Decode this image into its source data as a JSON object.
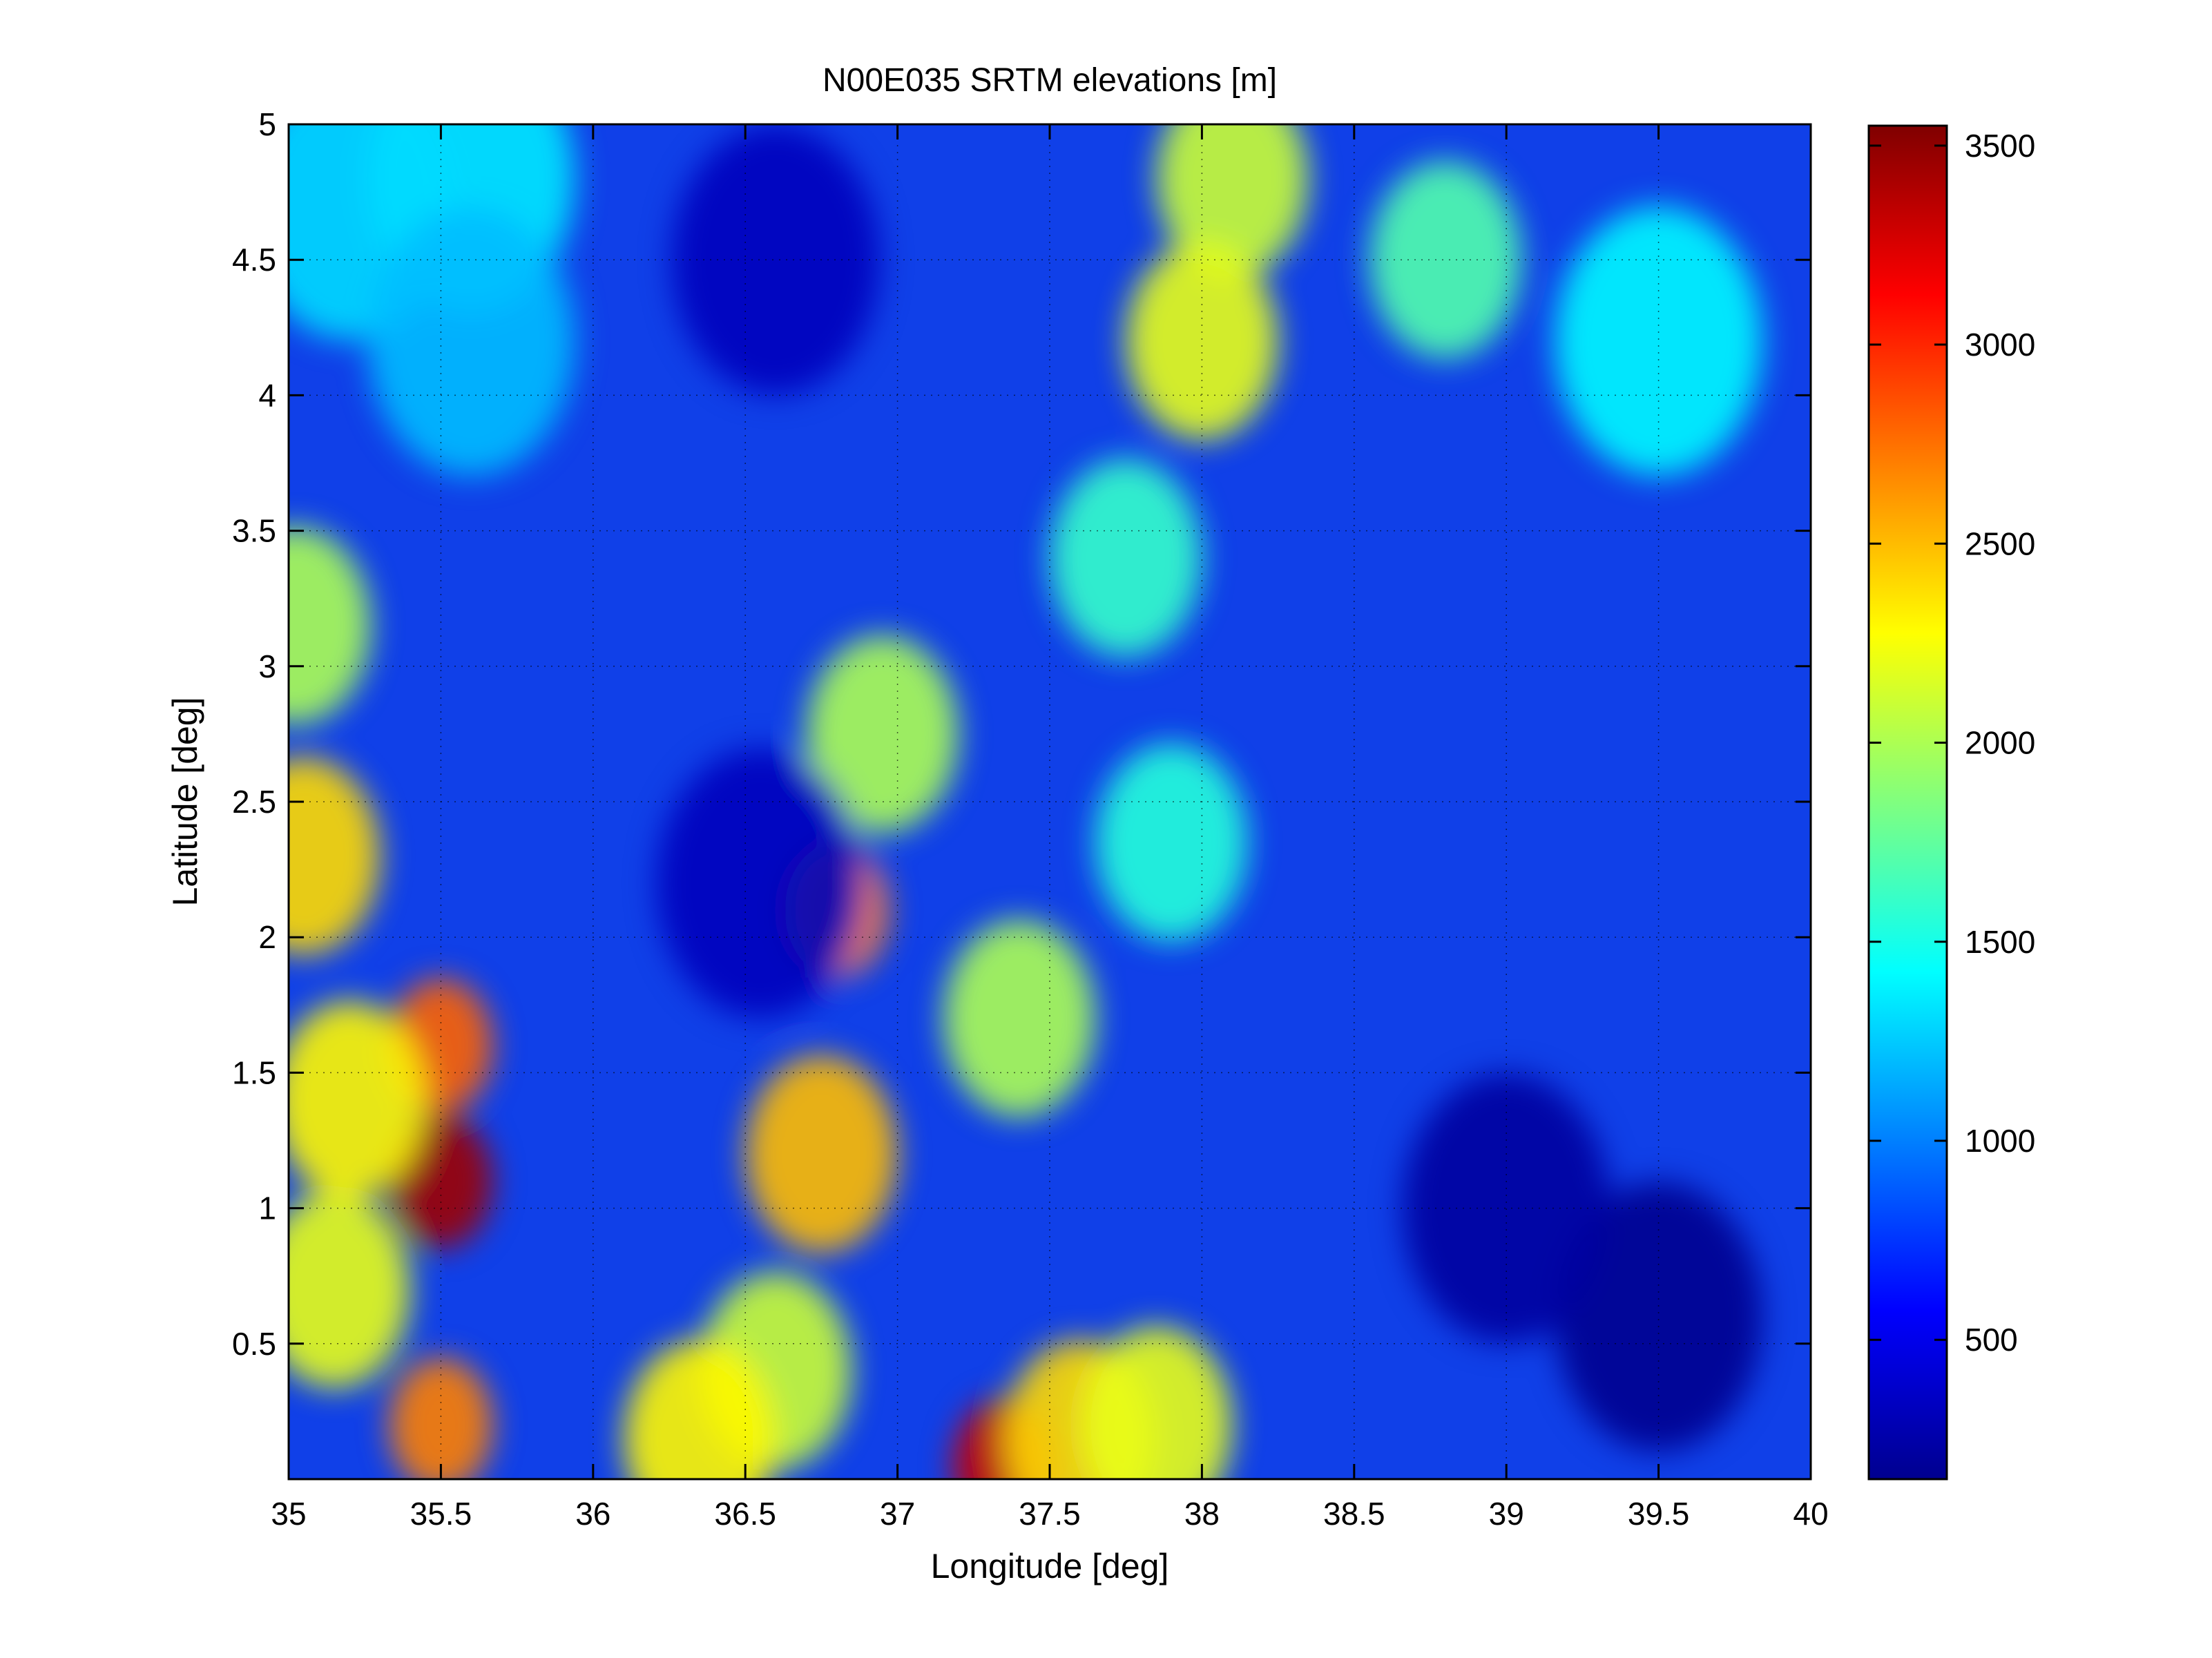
{
  "chart_data": {
    "type": "heatmap",
    "title": "N00E035 SRTM elevations [m]",
    "xlabel": "Longitude [deg]",
    "ylabel": "Latitude [deg]",
    "xlim": [
      35,
      40
    ],
    "ylim": [
      0,
      5
    ],
    "x_ticks": [
      35,
      35.5,
      36,
      36.5,
      37,
      37.5,
      38,
      38.5,
      39,
      39.5,
      40
    ],
    "y_ticks": [
      0.5,
      1,
      1.5,
      2,
      2.5,
      3,
      3.5,
      4,
      4.5,
      5
    ],
    "grid": true,
    "colormap": "jet",
    "colorbar": {
      "range": [
        150,
        3550
      ],
      "ticks": [
        500,
        1000,
        1500,
        2000,
        2500,
        3000,
        3500
      ]
    },
    "features": [
      {
        "lon": 35.5,
        "lat": 1.1,
        "elevation": 3450
      },
      {
        "lon": 35.5,
        "lat": 1.6,
        "elevation": 2800
      },
      {
        "lon": 35.5,
        "lat": 0.2,
        "elevation": 2700
      },
      {
        "lon": 35.15,
        "lat": 0.7,
        "elevation": 2200
      },
      {
        "lon": 35.2,
        "lat": 1.4,
        "elevation": 2300
      },
      {
        "lon": 35.05,
        "lat": 2.3,
        "elevation": 2400
      },
      {
        "lon": 35.02,
        "lat": 3.15,
        "elevation": 2000
      },
      {
        "lon": 36.75,
        "lat": 1.2,
        "elevation": 2500
      },
      {
        "lon": 36.6,
        "lat": 0.4,
        "elevation": 2100
      },
      {
        "lon": 36.35,
        "lat": 0.15,
        "elevation": 2300
      },
      {
        "lon": 37.35,
        "lat": 0.05,
        "elevation": 3300
      },
      {
        "lon": 37.6,
        "lat": 0.15,
        "elevation": 2400
      },
      {
        "lon": 36.8,
        "lat": 2.1,
        "elevation": 2700
      },
      {
        "lon": 36.95,
        "lat": 2.75,
        "elevation": 2000
      },
      {
        "lon": 37.75,
        "lat": 3.4,
        "elevation": 1600
      },
      {
        "lon": 37.9,
        "lat": 2.35,
        "elevation": 1550
      },
      {
        "lon": 37.4,
        "lat": 1.7,
        "elevation": 2000
      },
      {
        "lon": 37.85,
        "lat": 0.2,
        "elevation": 2200
      },
      {
        "lon": 38.1,
        "lat": 4.8,
        "elevation": 2100
      },
      {
        "lon": 38.0,
        "lat": 4.2,
        "elevation": 2200
      },
      {
        "lon": 38.8,
        "lat": 4.5,
        "elevation": 1700
      },
      {
        "lon": 39.5,
        "lat": 4.2,
        "elevation": 1400
      },
      {
        "lon": 35.6,
        "lat": 4.8,
        "elevation": 1350
      },
      {
        "lon": 35.2,
        "lat": 4.7,
        "elevation": 1300
      },
      {
        "lon": 35.6,
        "lat": 4.2,
        "elevation": 1200
      },
      {
        "lon": 36.55,
        "lat": 2.2,
        "elevation": 350
      },
      {
        "lon": 36.6,
        "lat": 4.5,
        "elevation": 350
      },
      {
        "lon": 39.5,
        "lat": 0.6,
        "elevation": 200
      },
      {
        "lon": 39.0,
        "lat": 1.0,
        "elevation": 250
      }
    ]
  }
}
